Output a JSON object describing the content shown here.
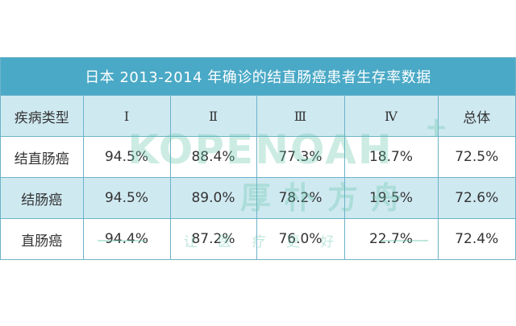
{
  "title": "日本 2013-2014 年确诊的结直肠癌患者生存率数据",
  "header": [
    "疾病类型",
    "Ⅰ",
    "Ⅱ",
    "Ⅲ",
    "Ⅳ",
    "总体"
  ],
  "rows": [
    {
      "type": "结直肠癌",
      "values": [
        "94.5%",
        "88.4%",
        "77.3%",
        "18.7%",
        "72.5%"
      ]
    },
    {
      "type": "结肠癌",
      "values": [
        "94.5%",
        "89.0%",
        "78.2%",
        "19.5%",
        "72.6%"
      ]
    },
    {
      "type": "直肠癌",
      "values": [
        "94.4%",
        "87.2%",
        "76.0%",
        "22.7%",
        "72.4%"
      ]
    }
  ],
  "watermark": {
    "brand": "KOPENOAH",
    "plus": "+",
    "cn": "厚朴方舟",
    "slogan": "让 医 疗 更 好",
    "color": "#5fc3a9"
  }
}
